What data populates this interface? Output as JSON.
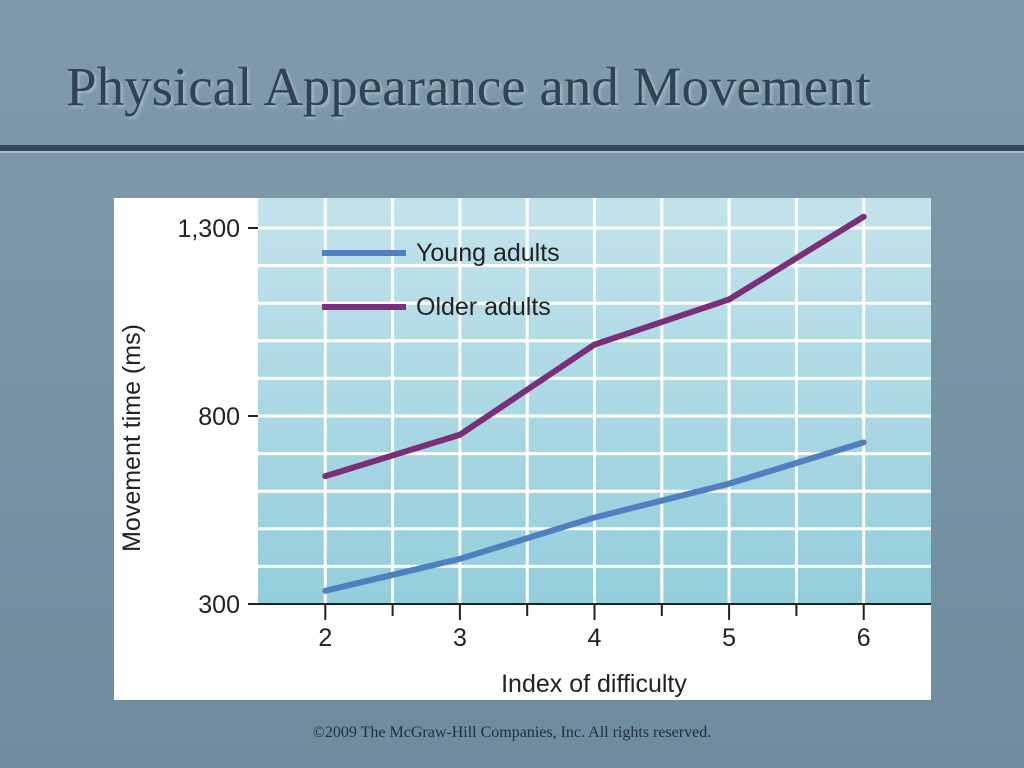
{
  "slide": {
    "title": "Physical Appearance and Movement",
    "footer": "©2009 The McGraw-Hill Companies, Inc. All rights reserved."
  },
  "chart_data": {
    "type": "line",
    "xlabel": "Index of difficulty",
    "ylabel": "Movement time (ms)",
    "x": [
      2,
      3,
      4,
      5,
      6
    ],
    "x_ticks": [
      "2",
      "3",
      "4",
      "5",
      "6"
    ],
    "y_ticks": [
      {
        "value": 300,
        "label": "300"
      },
      {
        "value": 800,
        "label": "800"
      },
      {
        "value": 1300,
        "label": "1,300"
      }
    ],
    "xlim": [
      1.5,
      6.5
    ],
    "ylim": [
      300,
      1300
    ],
    "grid": true,
    "legend": "top-left",
    "series": [
      {
        "name": "Young adults",
        "color": "#4f7fc0",
        "values": [
          335,
          420,
          530,
          620,
          730
        ]
      },
      {
        "name": "Older adults",
        "color": "#7a2f78",
        "values": [
          640,
          750,
          990,
          1110,
          1330
        ]
      }
    ],
    "colors": {
      "plot_bg_top": "#c3e3ec",
      "plot_bg_bottom": "#93cedb",
      "grid": "#ffffff",
      "axis": "#222222"
    }
  }
}
